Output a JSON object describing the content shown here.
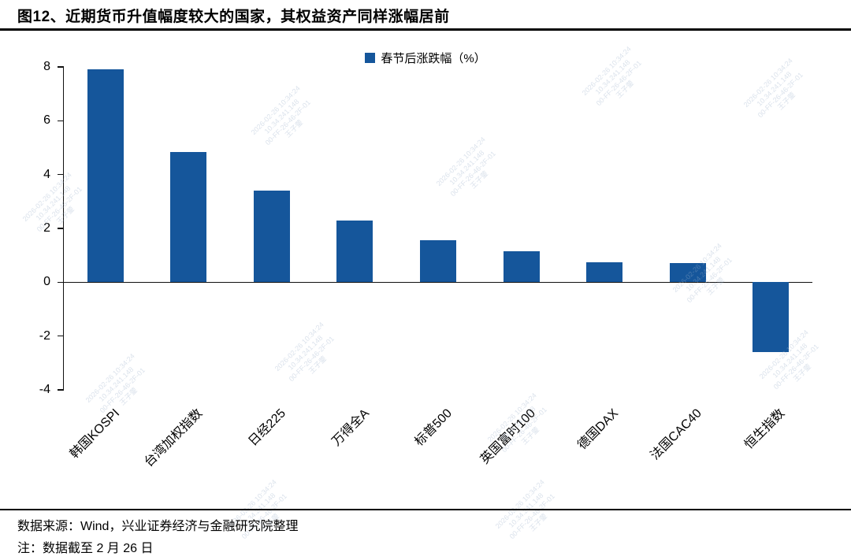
{
  "page": {
    "title": "图12、近期货币升值幅度较大的国家，其权益资产同样涨幅居前",
    "source": "数据来源：Wind，兴业证券经济与金融研究院整理",
    "note": "注：数据截至 2 月 26 日"
  },
  "chart_data": {
    "type": "bar",
    "title": "",
    "legend": [
      "春节后涨跌幅（%）"
    ],
    "legend_position": "top-center",
    "categories": [
      "韩国KOSPI",
      "台湾加权指数",
      "日经225",
      "万得全A",
      "标普500",
      "英国富时100",
      "德国DAX",
      "法国CAC40",
      "恒生指数"
    ],
    "values": [
      7.9,
      4.85,
      3.4,
      2.3,
      1.55,
      1.15,
      0.75,
      0.7,
      -2.6
    ],
    "xlabel": "",
    "ylabel": "",
    "ylim": [
      -4,
      8
    ],
    "yticks": [
      8,
      6,
      4,
      2,
      0,
      -2,
      -4
    ],
    "grid": false,
    "bar_color": "#15569B"
  },
  "watermark": {
    "lines": [
      "2026-02-26 10:34:24",
      "10.34.241.148",
      "00-FF-26-46-2F-01",
      "王子蓥"
    ]
  }
}
